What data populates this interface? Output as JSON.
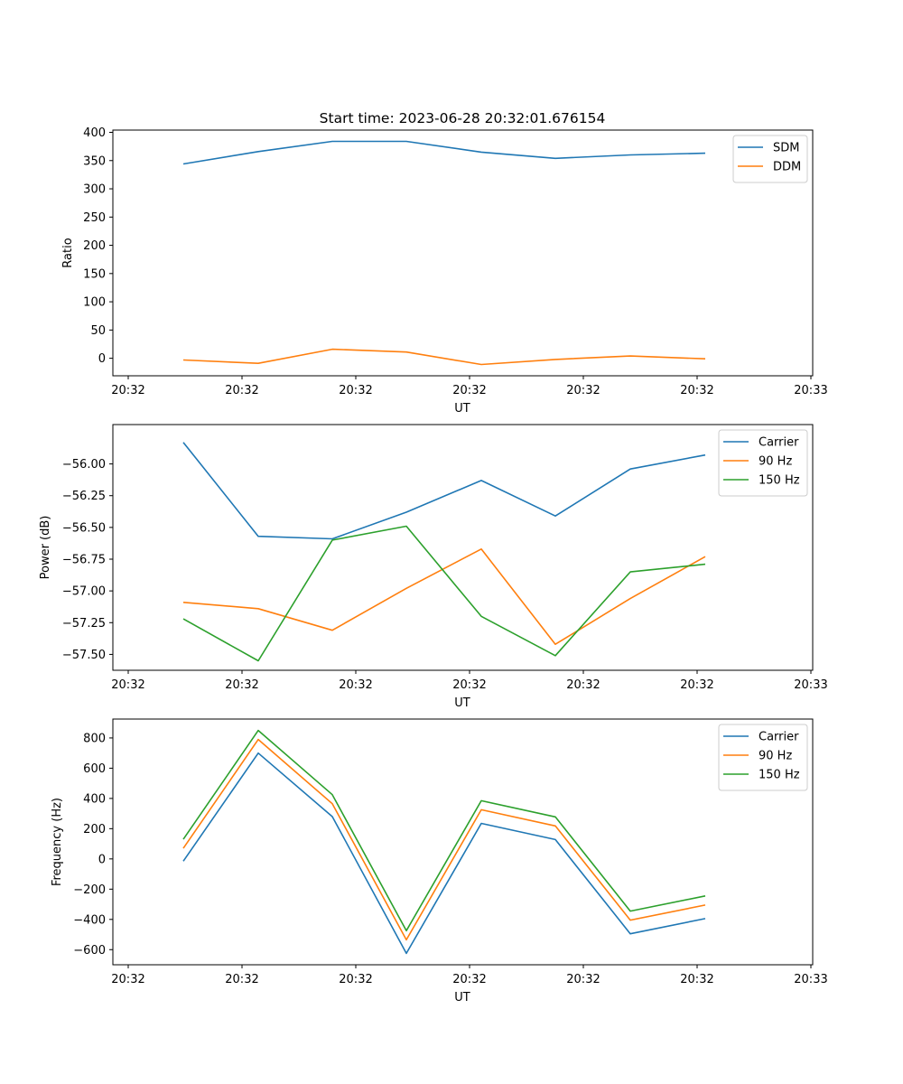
{
  "figure": {
    "title": "Start time: 2023-06-28 20:32:01.676154"
  },
  "chart_data": [
    {
      "type": "line",
      "title": "Start time: 2023-06-28 20:32:01.676154",
      "xlabel": "UT",
      "ylabel": "Ratio",
      "x_tick_labels": [
        "20:32",
        "20:32",
        "20:32",
        "20:32",
        "20:32",
        "20:32",
        "20:32",
        "20:33"
      ],
      "y_ticks": [
        0,
        50,
        100,
        150,
        200,
        250,
        300,
        350,
        400
      ],
      "y_tick_labels": [
        "0",
        "50",
        "100",
        "150",
        "200",
        "250",
        "300",
        "350",
        "400"
      ],
      "ylim": [
        -31,
        404
      ],
      "x_index": [
        1,
        2,
        3,
        4,
        5,
        6,
        7,
        8
      ],
      "legend_position": "top-right",
      "grid": false,
      "series": [
        {
          "name": "SDM",
          "color": "#1f77b4",
          "values": [
            344,
            366,
            384,
            384,
            365,
            354,
            360,
            363
          ]
        },
        {
          "name": "DDM",
          "color": "#ff7f0e",
          "values": [
            -3,
            -9,
            16,
            11,
            -11,
            -2,
            4,
            -1
          ]
        }
      ]
    },
    {
      "type": "line",
      "xlabel": "UT",
      "ylabel": "Power (dB)",
      "x_tick_labels": [
        "20:32",
        "20:32",
        "20:32",
        "20:32",
        "20:32",
        "20:32",
        "20:32",
        "20:33"
      ],
      "y_ticks": [
        -57.5,
        -57.25,
        -57.0,
        -56.75,
        -56.5,
        -56.25,
        -56.0
      ],
      "y_tick_labels": [
        "−57.50",
        "−57.25",
        "−57.00",
        "−56.75",
        "−56.50",
        "−56.25",
        "−56.00"
      ],
      "ylim": [
        -57.625,
        -55.69
      ],
      "x_index": [
        1,
        2,
        3,
        4,
        5,
        6,
        7,
        8
      ],
      "legend_position": "top-right",
      "grid": false,
      "series": [
        {
          "name": "Carrier",
          "color": "#1f77b4",
          "values": [
            -55.83,
            -56.57,
            -56.59,
            -56.38,
            -56.13,
            -56.41,
            -56.04,
            -55.93
          ]
        },
        {
          "name": "90 Hz",
          "color": "#ff7f0e",
          "values": [
            -57.09,
            -57.14,
            -57.31,
            -56.98,
            -56.67,
            -57.42,
            -57.06,
            -56.73
          ]
        },
        {
          "name": "150 Hz",
          "color": "#2ca02c",
          "values": [
            -57.22,
            -57.55,
            -56.6,
            -56.49,
            -57.2,
            -57.51,
            -56.85,
            -56.79
          ]
        }
      ]
    },
    {
      "type": "line",
      "xlabel": "UT",
      "ylabel": "Frequency (Hz)",
      "x_tick_labels": [
        "20:32",
        "20:32",
        "20:32",
        "20:32",
        "20:32",
        "20:32",
        "20:32",
        "20:33"
      ],
      "y_ticks": [
        -600,
        -400,
        -200,
        0,
        200,
        400,
        600,
        800
      ],
      "y_tick_labels": [
        "−600",
        "−400",
        "−200",
        "0",
        "200",
        "400",
        "600",
        "800"
      ],
      "ylim": [
        -700,
        925
      ],
      "x_index": [
        1,
        2,
        3,
        4,
        5,
        6,
        7,
        8
      ],
      "legend_position": "top-right",
      "grid": false,
      "series": [
        {
          "name": "Carrier",
          "color": "#1f77b4",
          "values": [
            -15,
            700,
            280,
            -625,
            235,
            128,
            -495,
            -395
          ]
        },
        {
          "name": "90 Hz",
          "color": "#ff7f0e",
          "values": [
            70,
            790,
            365,
            -535,
            325,
            218,
            -405,
            -305
          ]
        },
        {
          "name": "150 Hz",
          "color": "#2ca02c",
          "values": [
            130,
            850,
            425,
            -475,
            385,
            278,
            -345,
            -245
          ]
        }
      ]
    }
  ]
}
